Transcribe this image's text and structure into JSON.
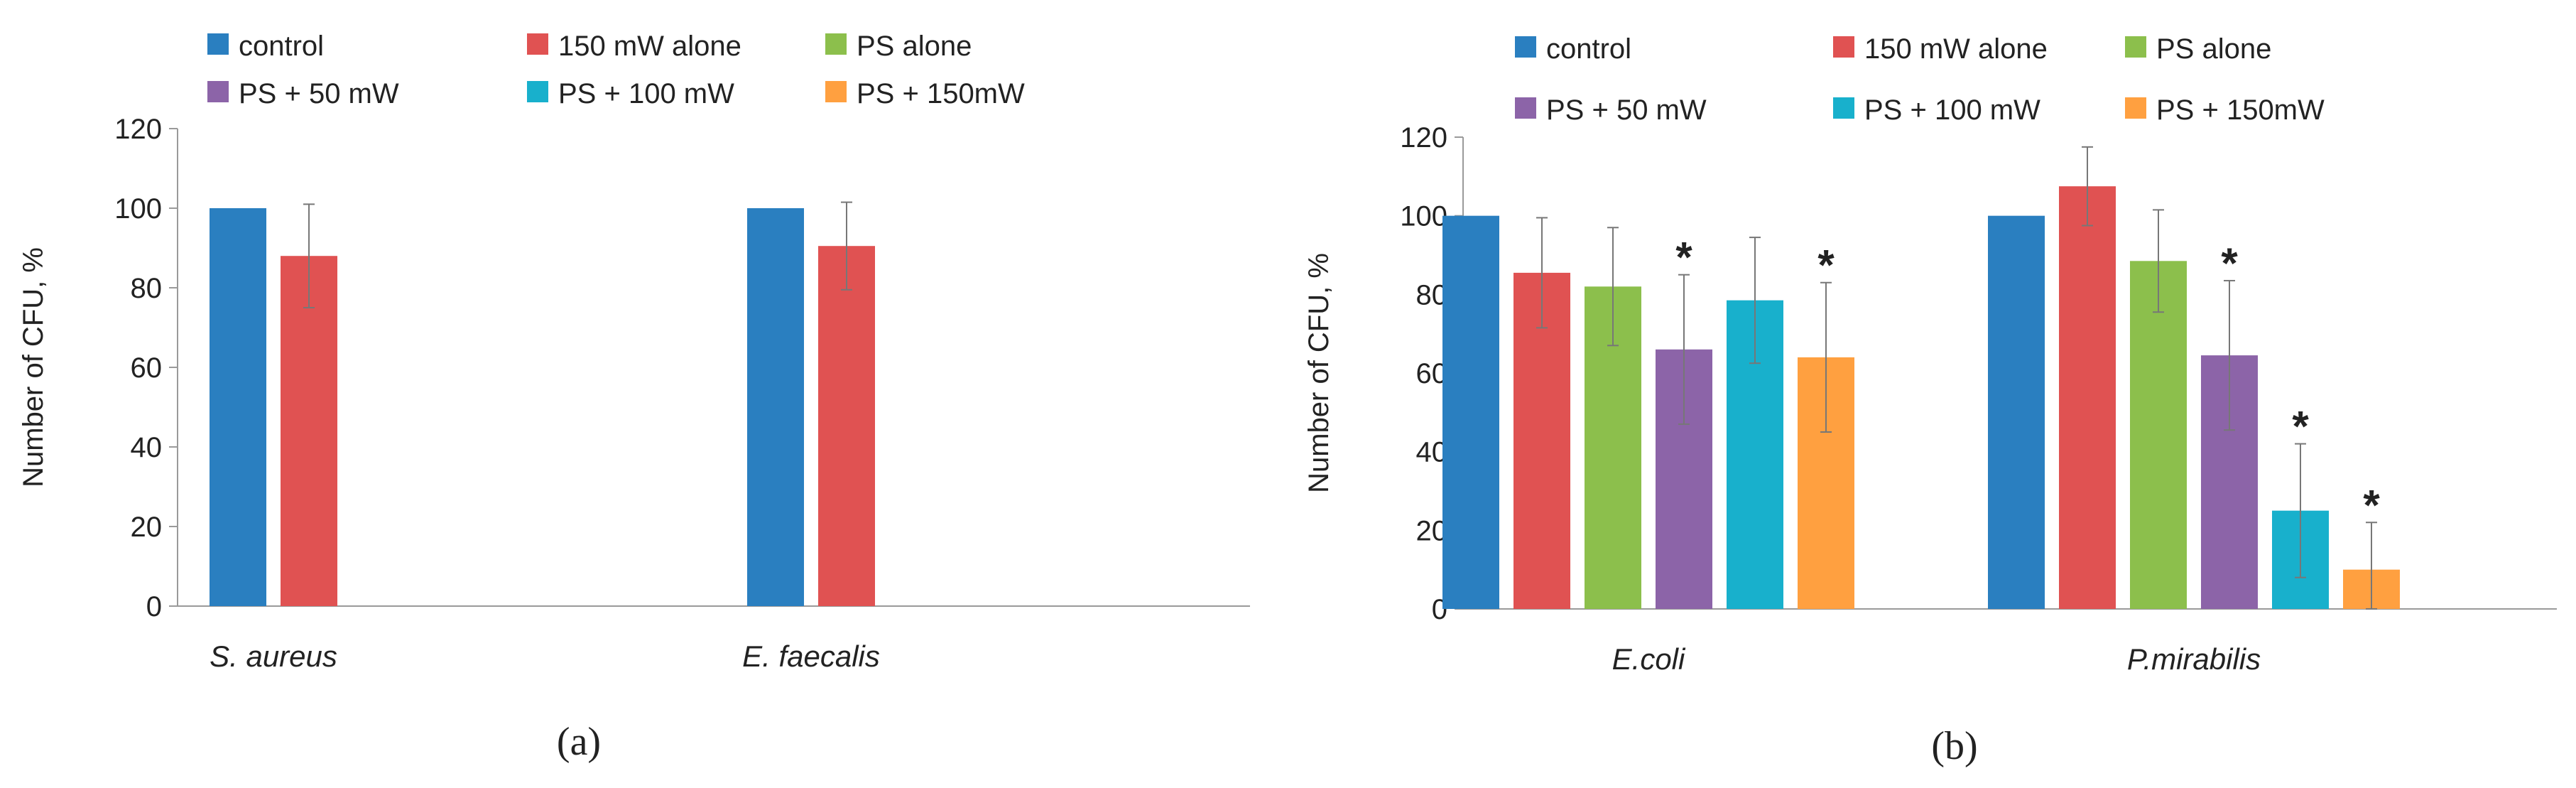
{
  "legend": [
    {
      "key": "control",
      "label": "control",
      "color": "#2a7fc0"
    },
    {
      "key": "mw150",
      "label": "150 mW alone",
      "color": "#e05252"
    },
    {
      "key": "ps",
      "label": "PS alone",
      "color": "#8cbf4c"
    },
    {
      "key": "ps50",
      "label": "PS + 50 mW",
      "color": "#8c64a8"
    },
    {
      "key": "ps100",
      "label": "PS + 100 mW",
      "color": "#18b0cc"
    },
    {
      "key": "ps150",
      "label": "PS + 150mW",
      "color": "#ffa040"
    }
  ],
  "chart_data": [
    {
      "type": "bar",
      "panel": "a",
      "panel_label": "(a)",
      "ylabel": "Number of CFU, %",
      "ylim": [
        0,
        120
      ],
      "yticks": [
        0,
        20,
        40,
        60,
        80,
        100,
        120
      ],
      "categories": [
        "S. aureus",
        "E. faecalis"
      ],
      "series": [
        {
          "name": "control",
          "values": [
            100,
            100
          ],
          "errors": [
            null,
            null
          ],
          "sig": [
            false,
            false
          ]
        },
        {
          "name": "150 mW alone",
          "values": [
            88,
            90.5
          ],
          "errors": [
            13,
            11
          ],
          "sig": [
            false,
            false
          ]
        }
      ]
    },
    {
      "type": "bar",
      "panel": "b",
      "panel_label": "(b)",
      "ylabel": "Number of CFU, %",
      "ylim": [
        0,
        120
      ],
      "yticks": [
        0,
        20,
        40,
        60,
        80,
        100,
        120
      ],
      "categories": [
        "E.coli",
        "P.mirabilis"
      ],
      "series": [
        {
          "name": "control",
          "values": [
            100,
            100
          ],
          "errors": [
            null,
            null
          ],
          "sig": [
            false,
            false
          ]
        },
        {
          "name": "150 mW alone",
          "values": [
            85.5,
            107.5
          ],
          "errors": [
            14,
            10
          ],
          "sig": [
            false,
            false
          ]
        },
        {
          "name": "PS alone",
          "values": [
            82,
            88.5
          ],
          "errors": [
            15,
            13
          ],
          "sig": [
            false,
            false
          ]
        },
        {
          "name": "PS + 50 mW",
          "values": [
            66,
            64.5
          ],
          "errors": [
            19,
            19
          ],
          "sig": [
            true,
            true
          ]
        },
        {
          "name": "PS + 100 mW",
          "values": [
            78.5,
            25
          ],
          "errors": [
            16,
            17
          ],
          "sig": [
            false,
            true
          ]
        },
        {
          "name": "PS + 150mW",
          "values": [
            64,
            10
          ],
          "errors": [
            19,
            12
          ],
          "sig": [
            true,
            true
          ]
        }
      ]
    }
  ]
}
